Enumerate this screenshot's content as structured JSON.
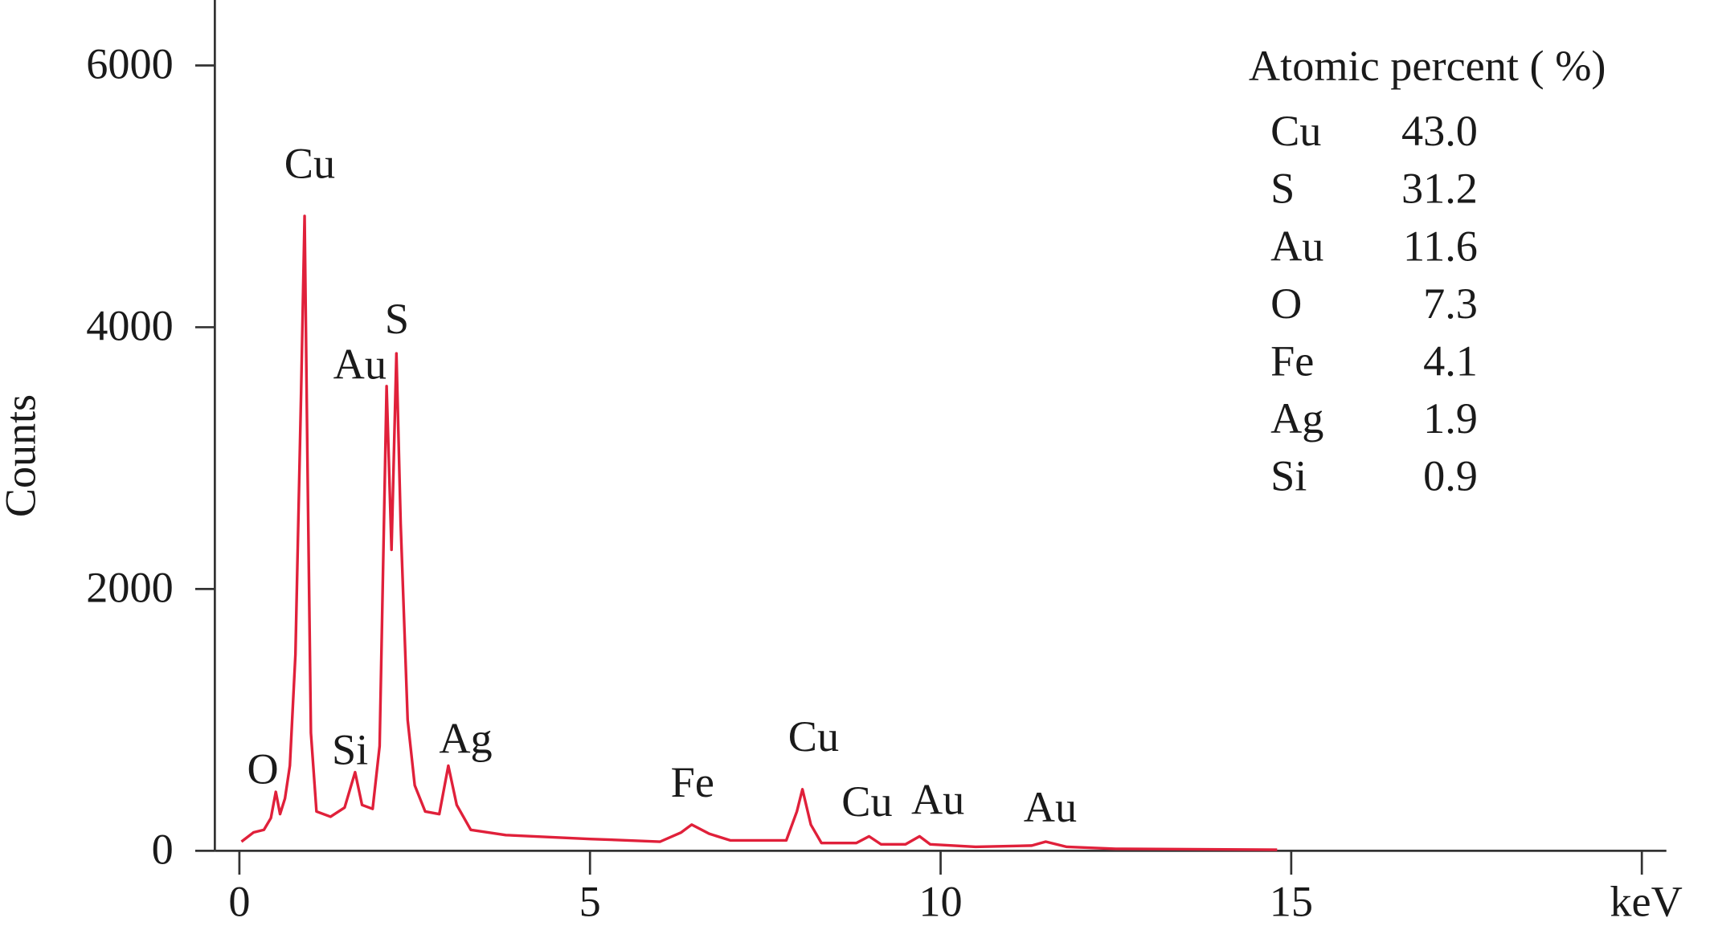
{
  "chart_data": {
    "type": "line",
    "y_label": "Counts",
    "x": [
      0.03,
      0.2,
      0.35,
      0.45,
      0.52,
      0.58,
      0.65,
      0.72,
      0.8,
      0.88,
      0.93,
      0.97,
      1.02,
      1.1,
      1.3,
      1.5,
      1.65,
      1.75,
      1.9,
      2.0,
      2.1,
      2.17,
      2.24,
      2.3,
      2.4,
      2.5,
      2.65,
      2.85,
      2.98,
      3.1,
      3.3,
      3.8,
      5.0,
      6.0,
      6.3,
      6.45,
      6.7,
      7.0,
      7.8,
      7.95,
      8.03,
      8.15,
      8.3,
      8.8,
      8.98,
      9.15,
      9.5,
      9.7,
      9.85,
      10.5,
      11.3,
      11.5,
      11.8,
      12.5,
      14.8
    ],
    "series": [
      {
        "color": "#e0203a",
        "values": [
          70,
          140,
          160,
          250,
          450,
          280,
          400,
          650,
          1500,
          3500,
          4850,
          3000,
          900,
          300,
          260,
          330,
          600,
          350,
          320,
          800,
          3550,
          2300,
          3800,
          2500,
          1000,
          500,
          300,
          280,
          650,
          350,
          160,
          120,
          90,
          70,
          140,
          200,
          130,
          80,
          80,
          300,
          470,
          200,
          60,
          60,
          110,
          50,
          50,
          110,
          50,
          30,
          40,
          70,
          30,
          15,
          8
        ]
      }
    ],
    "xlim": [
      -0.35,
      20.35
    ],
    "ylim": [
      0,
      6500
    ],
    "xticks": [
      0,
      5,
      10,
      15,
      {
        "value": 20,
        "label": "keV"
      }
    ],
    "yticks": [
      0,
      2000,
      4000,
      6000
    ],
    "annotations": [
      "O",
      "Cu",
      "Si",
      "Au",
      "S",
      "Ag",
      "Fe",
      "Cu",
      "Cu",
      "Au",
      "Au"
    ],
    "composition": {
      "title": "Atomic percent ( %)",
      "rows": [
        [
          "Cu",
          "43.0"
        ],
        [
          "S",
          "31.2"
        ],
        [
          "Au",
          "11.6"
        ],
        [
          "O",
          "7.3"
        ],
        [
          "Fe",
          "4.1"
        ],
        [
          "Ag",
          "1.9"
        ],
        [
          "Si",
          "0.9"
        ]
      ]
    }
  }
}
